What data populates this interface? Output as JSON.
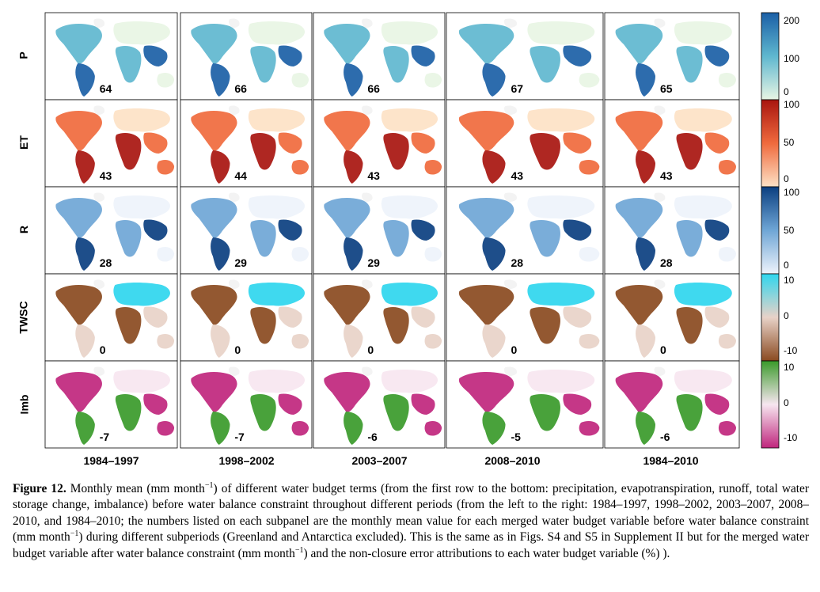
{
  "figure": {
    "rows": [
      {
        "label": "P",
        "colors": [
          "#1b5fa6",
          "#5fb7cf",
          "#e8f5e4"
        ],
        "ticks": [
          "200",
          "100",
          "0"
        ],
        "values": [
          "64",
          "66",
          "66",
          "67",
          "65"
        ]
      },
      {
        "label": "ET",
        "colors": [
          "#a8150f",
          "#f06a3d",
          "#fde2c6"
        ],
        "ticks": [
          "100",
          "50",
          "0"
        ],
        "values": [
          "43",
          "44",
          "43",
          "43",
          "43"
        ]
      },
      {
        "label": "R",
        "colors": [
          "#0b3f80",
          "#6fa6d6",
          "#eef3fb"
        ],
        "ticks": [
          "100",
          "50",
          "0"
        ],
        "values": [
          "28",
          "29",
          "29",
          "28",
          "28"
        ]
      },
      {
        "label": "TWSC",
        "colors": [
          "#2fd6ee",
          "#e8d2c8",
          "#8a4a20"
        ],
        "ticks": [
          "10",
          "0",
          "-10"
        ],
        "values": [
          "0",
          "0",
          "0",
          "0",
          "0"
        ]
      },
      {
        "label": "Imb",
        "colors": [
          "#3a9a2a",
          "#f7e6f0",
          "#c0267d"
        ],
        "ticks": [
          "10",
          "0",
          "-10"
        ],
        "values": [
          "-7",
          "-7",
          "-6",
          "-5",
          "-6"
        ]
      }
    ],
    "columns": [
      "1984–1997",
      "1998–2002",
      "2003–2007",
      "2008–2010",
      "1984–2010"
    ]
  },
  "caption": {
    "label": "Figure 12.",
    "part1": " Monthly mean (mm month",
    "sup1": "−1",
    "part2": ") of different water budget terms (from the first row to the bottom: precipitation, evapotranspiration, runoff, total water storage change, imbalance) before water balance constraint throughout different periods (from the left to the right: 1984–1997, 1998–2002, 2003–2007, 2008–2010, and 1984–2010; the numbers listed on each subpanel are the monthly mean value for each merged water budget variable before water balance constraint (mm month",
    "sup2": "−1",
    "part3": ") during different subperiods (Greenland and Antarctica excluded). This is the same as in Figs. S4 and S5 in Supplement II but for the merged water budget variable after water balance constraint (mm month",
    "sup3": "−1",
    "part4": ") and the non-closure error attributions to each water budget variable (%) )."
  }
}
